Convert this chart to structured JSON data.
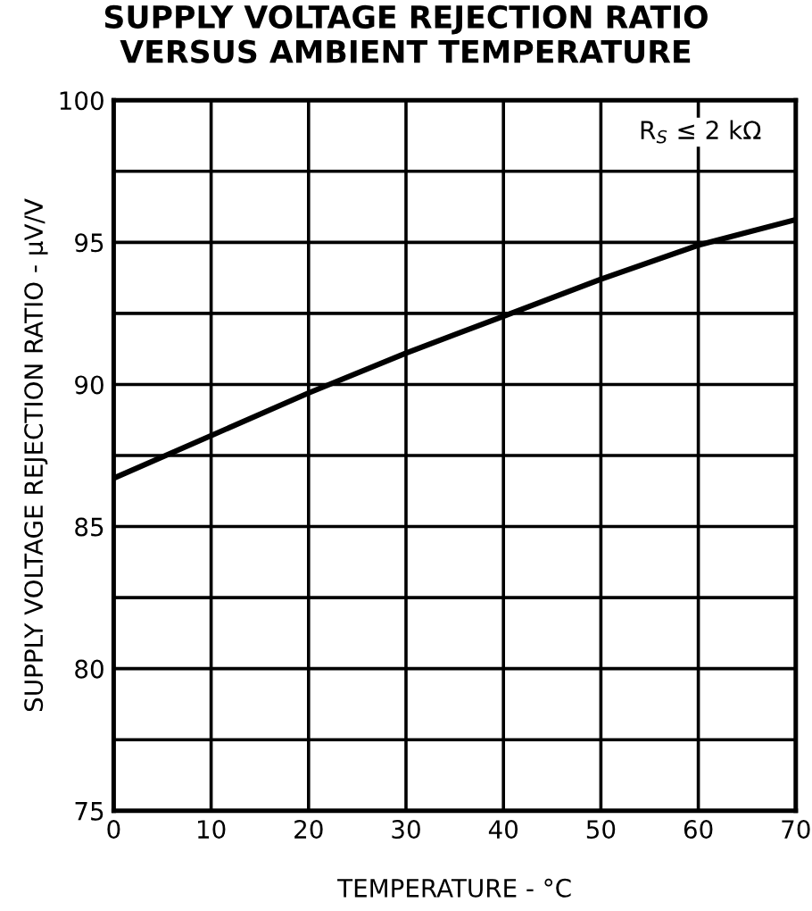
{
  "chart_data": {
    "type": "line",
    "title": "SUPPLY VOLTAGE REJECTION RATIO\nVERSUS AMBIENT TEMPERATURE",
    "xlabel": "TEMPERATURE - °C",
    "ylabel": "SUPPLY VOLTAGE REJECTION RATIO - μV/V",
    "annotations": [
      "R$_{S}$ ≤ 2 kΩ"
    ],
    "x": [
      0,
      10,
      20,
      30,
      40,
      50,
      60,
      70
    ],
    "series": [
      {
        "color": "#000000",
        "values": [
          86.7,
          88.2,
          89.7,
          91.1,
          92.4,
          93.7,
          94.9,
          95.8
        ]
      }
    ],
    "xlim": [
      0,
      70
    ],
    "xticks": [
      0,
      10,
      20,
      30,
      40,
      50,
      60,
      70
    ],
    "ylim": [
      75,
      100
    ],
    "yticks": [
      75,
      {
        "value": 77.5,
        "label": null
      },
      80,
      {
        "value": 82.5,
        "label": null
      },
      85,
      {
        "value": 87.5,
        "label": null
      },
      90,
      {
        "value": 92.5,
        "label": null
      },
      95,
      {
        "value": 97.5,
        "label": null
      },
      100
    ],
    "grid": true,
    "marker": "none",
    "line_style": "solid"
  }
}
